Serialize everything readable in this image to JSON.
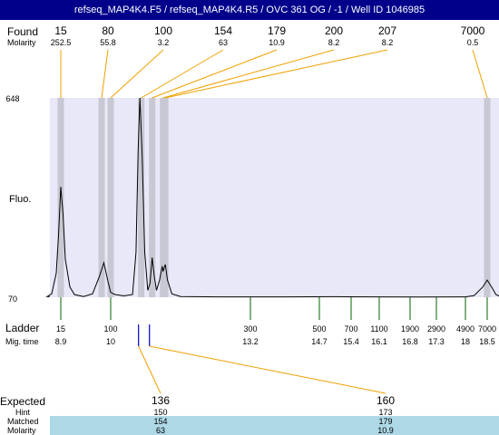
{
  "title": "refseq_MAP4K4.F5 / refseq_MAP4K4.R5 / OVC 361 OG / -1 / Well ID 1046985",
  "labels": {
    "found": "Found",
    "molarity": "Molarity",
    "fluo": "Fluo.",
    "ladder": "Ladder",
    "mig_time": "Mig. time",
    "expected": "Expected",
    "hint": "Hint",
    "matched": "Matched",
    "molarity_bottom": "Molarity"
  },
  "chart_data": {
    "type": "line",
    "ylim": [
      70,
      648
    ],
    "y_ticks": [
      "648",
      "70"
    ],
    "found_peaks": [
      {
        "size": "15",
        "molarity": "252.5",
        "time": 8.9
      },
      {
        "size": "80",
        "molarity": "55.8",
        "time": 9.8
      },
      {
        "size": "100",
        "molarity": "3.2",
        "time": 10.0
      },
      {
        "size": "154",
        "molarity": "63",
        "time": 10.7
      },
      {
        "size": "179",
        "molarity": "10.9",
        "time": 10.95
      },
      {
        "size": "200",
        "molarity": "8.2",
        "time": 11.2
      },
      {
        "size": "207",
        "molarity": "8.2",
        "time": 11.25
      },
      {
        "size": "7000",
        "molarity": "0.5",
        "time": 18.5
      }
    ],
    "ladder": [
      {
        "size": "15",
        "time": "8.9"
      },
      {
        "size": "100",
        "time": "10"
      },
      {
        "size": "300",
        "time": "13.2"
      },
      {
        "size": "500",
        "time": "14.7"
      },
      {
        "size": "700",
        "time": "15.4"
      },
      {
        "size": "1100",
        "time": "16.1"
      },
      {
        "size": "1900",
        "time": "16.8"
      },
      {
        "size": "2900",
        "time": "17.3"
      },
      {
        "size": "4900",
        "time": "18"
      },
      {
        "size": "7000",
        "time": "18.5"
      }
    ],
    "expected": [
      {
        "size": "136",
        "hint": "150",
        "matched": "154",
        "molarity": "63",
        "time": 10.7
      },
      {
        "size": "160",
        "hint": "173",
        "matched": "179",
        "molarity": "10.9",
        "time": 10.95
      }
    ],
    "trace": [
      [
        8.6,
        72
      ],
      [
        8.7,
        80
      ],
      [
        8.8,
        140
      ],
      [
        8.85,
        250
      ],
      [
        8.9,
        390
      ],
      [
        8.95,
        310
      ],
      [
        9.0,
        180
      ],
      [
        9.1,
        100
      ],
      [
        9.2,
        78
      ],
      [
        9.4,
        72
      ],
      [
        9.6,
        80
      ],
      [
        9.75,
        130
      ],
      [
        9.85,
        170
      ],
      [
        9.95,
        110
      ],
      [
        10.0,
        84
      ],
      [
        10.1,
        78
      ],
      [
        10.3,
        74
      ],
      [
        10.5,
        78
      ],
      [
        10.58,
        200
      ],
      [
        10.63,
        500
      ],
      [
        10.67,
        648
      ],
      [
        10.72,
        480
      ],
      [
        10.78,
        200
      ],
      [
        10.85,
        90
      ],
      [
        10.9,
        110
      ],
      [
        10.95,
        185
      ],
      [
        11.0,
        130
      ],
      [
        11.05,
        90
      ],
      [
        11.12,
        120
      ],
      [
        11.18,
        160
      ],
      [
        11.2,
        145
      ],
      [
        11.25,
        165
      ],
      [
        11.3,
        120
      ],
      [
        11.4,
        80
      ],
      [
        11.6,
        72
      ],
      [
        12.5,
        71
      ],
      [
        14.0,
        71
      ],
      [
        15.0,
        71.5
      ],
      [
        16.0,
        71
      ],
      [
        17.0,
        70.5
      ],
      [
        18.0,
        71
      ],
      [
        18.2,
        75
      ],
      [
        18.4,
        100
      ],
      [
        18.5,
        120
      ],
      [
        18.6,
        100
      ],
      [
        18.7,
        78
      ],
      [
        18.8,
        72
      ]
    ]
  },
  "colors": {
    "title_bg": "#00008b",
    "plot_bg": "#e8e8f8",
    "band": "#c8c8d4",
    "found_line": "#f0a000",
    "ladder_tick": "#006400",
    "expected_tick": "#0000cc",
    "matched_bg": "#add8e6"
  }
}
